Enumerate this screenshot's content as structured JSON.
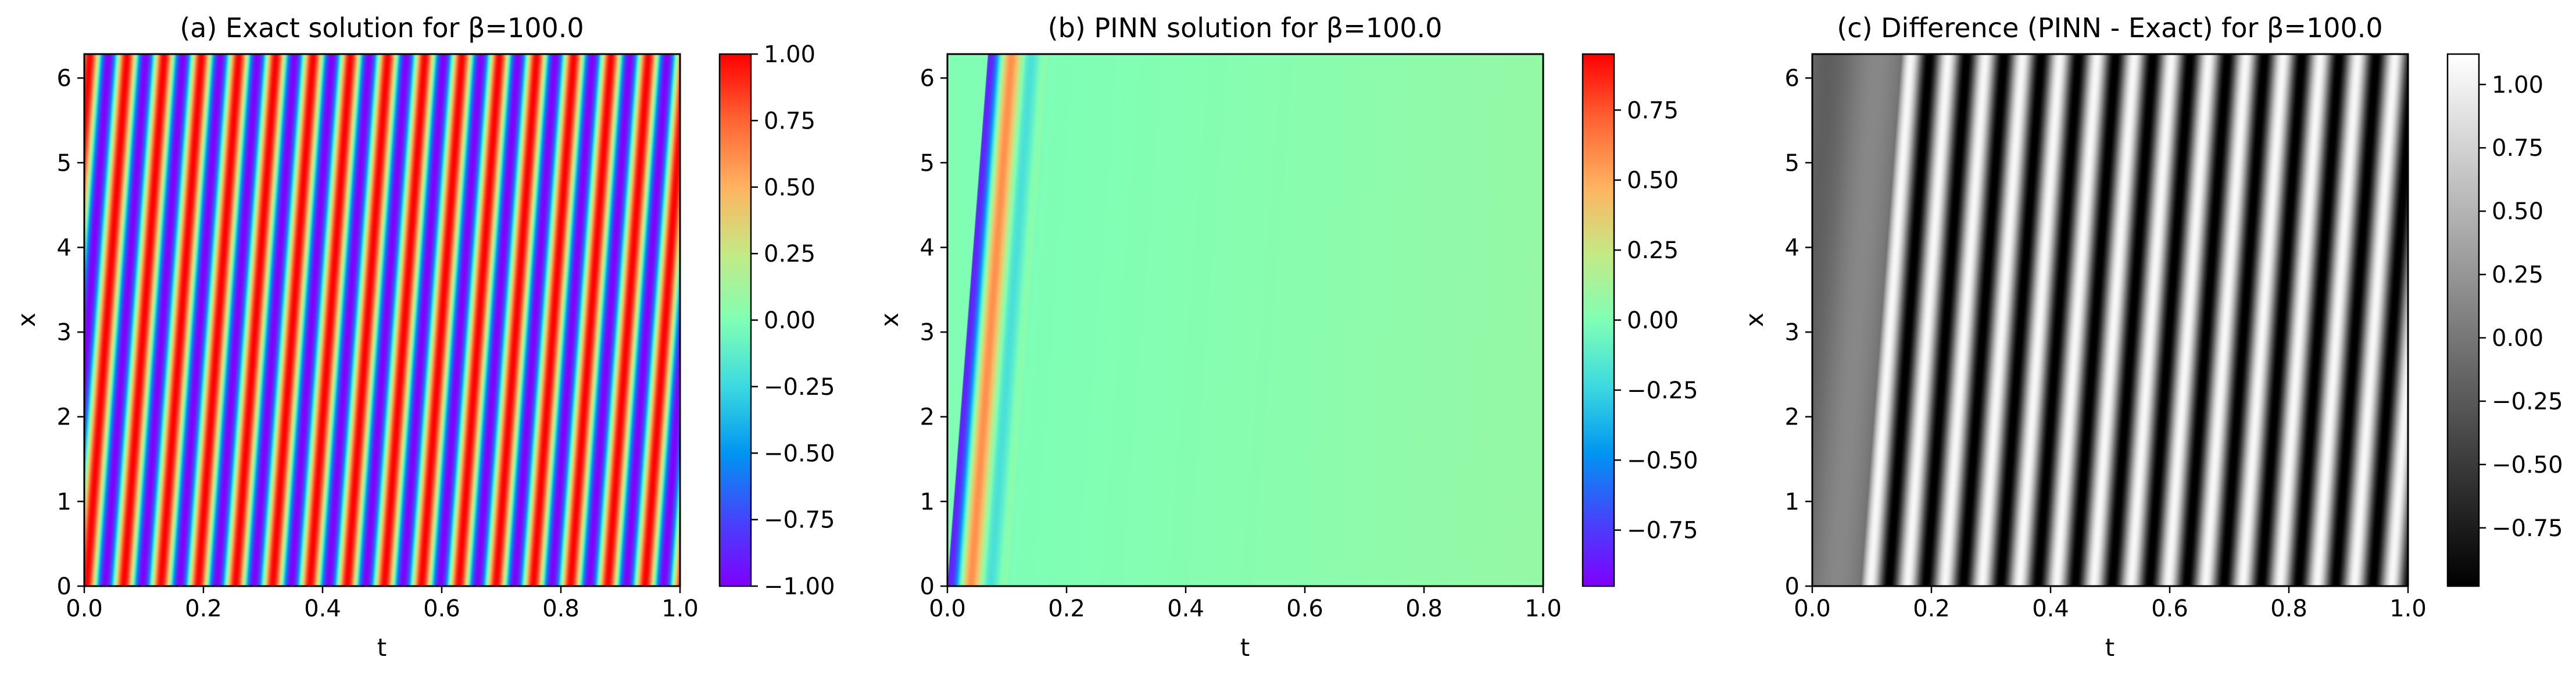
{
  "chart_data": [
    {
      "type": "heatmap",
      "title": "(a) Exact solution for β=100.0",
      "xlabel": "t",
      "ylabel": "x",
      "xlim": [
        0.0,
        1.0
      ],
      "ylim": [
        0,
        6.283
      ],
      "xticks": [
        "0.0",
        "0.2",
        "0.4",
        "0.6",
        "0.8",
        "1.0"
      ],
      "yticks": [
        "0",
        "1",
        "2",
        "3",
        "4",
        "5",
        "6"
      ],
      "colormap": "rainbow",
      "colorbar_range": [
        -1.0,
        1.0
      ],
      "colorbar_ticks": [
        "1.00",
        "0.75",
        "0.50",
        "0.25",
        "0.00",
        "−0.25",
        "−0.50",
        "−0.75",
        "−1.00"
      ],
      "stripe_periods_across_t": 16
    },
    {
      "type": "heatmap",
      "title": "(b) PINN solution for β=100.0",
      "xlabel": "t",
      "ylabel": "x",
      "xlim": [
        0.0,
        1.0
      ],
      "ylim": [
        0,
        6.283
      ],
      "xticks": [
        "0.0",
        "0.2",
        "0.4",
        "0.6",
        "0.8",
        "1.0"
      ],
      "yticks": [
        "0",
        "1",
        "2",
        "3",
        "4",
        "5",
        "6"
      ],
      "colormap": "rainbow",
      "colorbar_range": [
        -0.95,
        0.95
      ],
      "colorbar_ticks": [
        "0.75",
        "0.50",
        "0.25",
        "0.00",
        "−0.25",
        "−0.50",
        "−0.75"
      ],
      "description_values": {
        "plateau_value_t0.2": -0.08,
        "plateau_value_t1.0": 0.08
      }
    },
    {
      "type": "heatmap",
      "title": "(c) Difference (PINN - Exact) for β=100.0",
      "xlabel": "t",
      "ylabel": "x",
      "xlim": [
        0.0,
        1.0
      ],
      "ylim": [
        0,
        6.283
      ],
      "xticks": [
        "0.0",
        "0.2",
        "0.4",
        "0.6",
        "0.8",
        "1.0"
      ],
      "yticks": [
        "0",
        "1",
        "2",
        "3",
        "4",
        "5",
        "6"
      ],
      "colormap": "gray",
      "colorbar_range": [
        -0.98,
        1.12
      ],
      "colorbar_ticks": [
        "1.00",
        "0.75",
        "0.50",
        "0.25",
        "0.00",
        "−0.25",
        "−0.50",
        "−0.75"
      ]
    }
  ]
}
